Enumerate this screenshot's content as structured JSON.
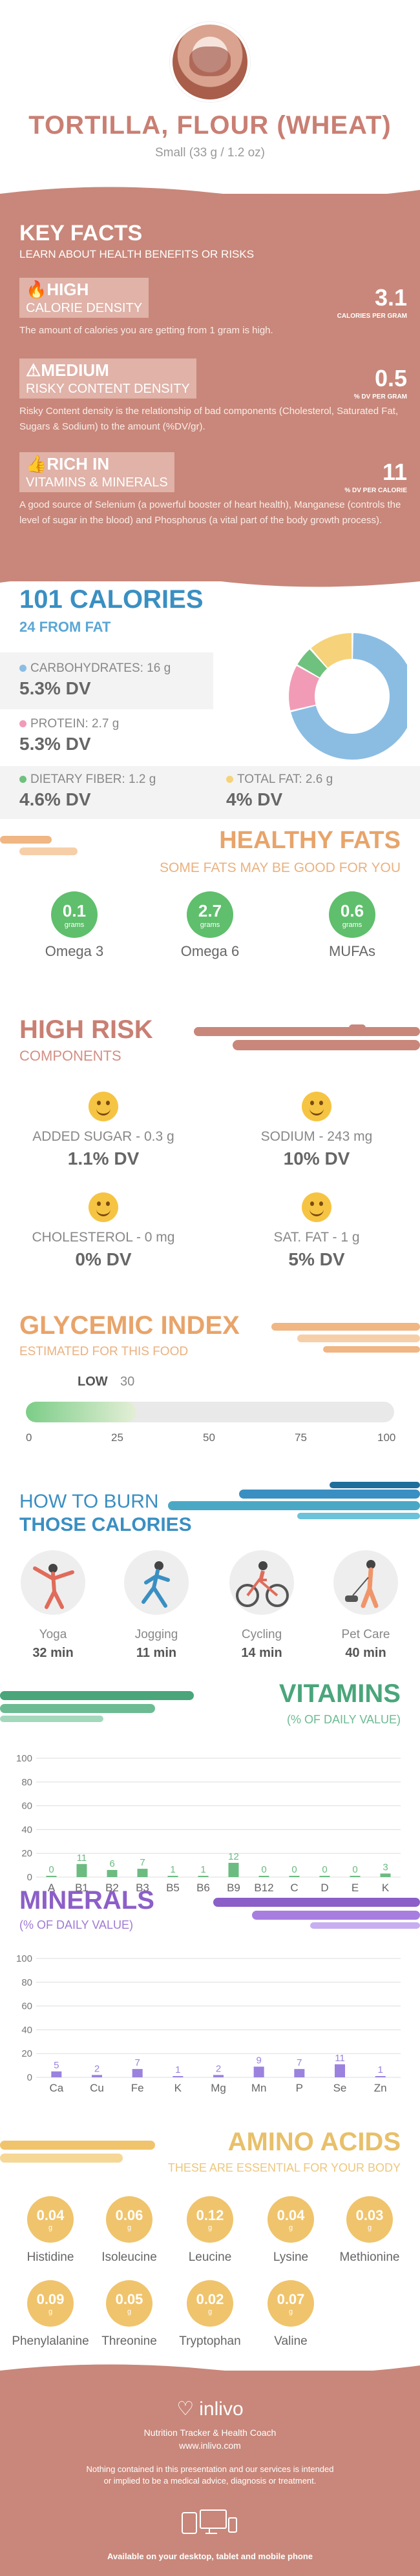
{
  "header": {
    "title": "TORTILLA, FLOUR (WHEAT)",
    "serving": "Small (33 g / 1.2 oz)"
  },
  "key_facts": {
    "title": "KEY FACTS",
    "subtitle": "LEARN ABOUT HEALTH BENEFITS OR RISKS",
    "items": [
      {
        "level": "HIGH",
        "label": "CALORIE DENSITY",
        "value": "3.1",
        "unit": "CALORIES PER GRAM",
        "icon": "flame-icon",
        "desc": "The amount of calories you are getting from 1 gram is high."
      },
      {
        "level": "MEDIUM",
        "label": "RISKY CONTENT DENSITY",
        "value": "0.5",
        "unit": "% DV PER GRAM",
        "icon": "warning-icon",
        "desc": "Risky Content density is the relationship of bad components (Cholesterol, Saturated Fat, Sugars & Sodium) to the amount (%DV/gr)."
      },
      {
        "level": "RICH",
        "label_prefix": "IN",
        "label": "VITAMINS & MINERALS",
        "value": "11",
        "unit": "% DV PER CALORIE",
        "icon": "thumbs-up-icon",
        "desc": "A good source of Selenium (a powerful booster of heart health), Manganese (controls the level of sugar in the blood) and Phosphorus (a vital part of the body growth process)."
      }
    ]
  },
  "calories": {
    "title": "101 CALORIES",
    "subtitle": "24 FROM FAT",
    "nutrients": [
      {
        "label": "CARBOHYDRATES: 16 g",
        "dv": "5.3% DV",
        "color": "#8bbde3"
      },
      {
        "label": "PROTEIN: 2.7 g",
        "dv": "5.3% DV",
        "color": "#f29bb7"
      },
      {
        "label": "DIETARY FIBER: 1.2 g",
        "dv": "4.6% DV",
        "color": "#6fc17e"
      },
      {
        "label": "TOTAL FAT: 2.6 g",
        "dv": "4% DV",
        "color": "#f6d27a"
      }
    ]
  },
  "chart_data": [
    {
      "type": "pie",
      "categories": [
        "Carbohydrates",
        "Protein",
        "Dietary Fiber",
        "Total Fat"
      ],
      "values": [
        16,
        2.7,
        1.2,
        2.6
      ],
      "colors": [
        "#8bbde3",
        "#f29bb7",
        "#6fc17e",
        "#f6d27a"
      ]
    },
    {
      "type": "bar",
      "categories": [
        "A",
        "B1",
        "B2",
        "B3",
        "B5",
        "B6",
        "B9",
        "B12",
        "C",
        "D",
        "E",
        "K"
      ],
      "values": [
        0,
        11,
        6,
        7,
        1,
        1,
        12,
        0,
        0,
        0,
        0,
        3
      ],
      "ylim": [
        0,
        100
      ],
      "yticks": [
        0,
        20,
        40,
        60,
        80,
        100
      ],
      "color": "#6cbb81"
    },
    {
      "type": "bar",
      "categories": [
        "Ca",
        "Cu",
        "Fe",
        "K",
        "Mg",
        "Mn",
        "P",
        "Se",
        "Zn"
      ],
      "values": [
        5,
        2,
        7,
        1,
        2,
        9,
        7,
        11,
        1
      ],
      "ylim": [
        0,
        100
      ],
      "yticks": [
        0,
        20,
        40,
        60,
        80,
        100
      ],
      "color": "#9b82de"
    }
  ],
  "healthy_fats": {
    "title": "HEALTHY FATS",
    "subtitle": "SOME FATS MAY BE GOOD FOR YOU",
    "unit": "grams",
    "items": [
      {
        "name": "Omega 3",
        "value": "0.1"
      },
      {
        "name": "Omega 6",
        "value": "2.7"
      },
      {
        "name": "MUFAs",
        "value": "0.6"
      }
    ]
  },
  "high_risk": {
    "title": "HIGH RISK",
    "subtitle": "COMPONENTS",
    "items": [
      {
        "label": "ADDED SUGAR - 0.3 g",
        "dv": "1.1% DV"
      },
      {
        "label": "SODIUM - 243 mg",
        "dv": "10% DV"
      },
      {
        "label": "CHOLESTEROL - 0 mg",
        "dv": "0% DV"
      },
      {
        "label": "SAT. FAT - 1 g",
        "dv": "5% DV"
      }
    ]
  },
  "glycemic": {
    "title": "GLYCEMIC INDEX",
    "subtitle": "ESTIMATED FOR THIS FOOD",
    "level": "LOW",
    "value": "30",
    "fraction": 0.3,
    "ticks": [
      "0",
      "25",
      "50",
      "75",
      "100"
    ]
  },
  "burn": {
    "title1": "HOW TO BURN",
    "title2": "THOSE CALORIES",
    "items": [
      {
        "name": "Yoga",
        "minutes": "32 min",
        "icon": "yoga-icon"
      },
      {
        "name": "Jogging",
        "minutes": "11 min",
        "icon": "jogging-icon"
      },
      {
        "name": "Cycling",
        "minutes": "14 min",
        "icon": "cycling-icon"
      },
      {
        "name": "Pet Care",
        "minutes": "40 min",
        "icon": "pet-care-icon"
      }
    ]
  },
  "vitamins": {
    "title": "VITAMINS",
    "subtitle": "(% OF DAILY VALUE)"
  },
  "minerals": {
    "title": "MINERALS",
    "subtitle": "(% OF DAILY VALUE)"
  },
  "amino": {
    "title": "AMINO ACIDS",
    "subtitle": "THESE ARE ESSENTIAL FOR YOUR BODY",
    "unit": "g",
    "items": [
      {
        "name": "Histidine",
        "value": "0.04"
      },
      {
        "name": "Isoleucine",
        "value": "0.06"
      },
      {
        "name": "Leucine",
        "value": "0.12"
      },
      {
        "name": "Lysine",
        "value": "0.04"
      },
      {
        "name": "Methionine",
        "value": "0.03"
      },
      {
        "name": "Phenylalanine",
        "value": "0.09"
      },
      {
        "name": "Threonine",
        "value": "0.05"
      },
      {
        "name": "Tryptophan",
        "value": "0.02"
      },
      {
        "name": "Valine",
        "value": "0.07"
      }
    ]
  },
  "footer": {
    "brand": "inlivo",
    "tagline": "Nutrition Tracker & Health Coach",
    "url": "www.inlivo.com",
    "disclaimer": "Nothing contained in this presentation and our services is intended or implied to be a medical advice, diagnosis or treatment.",
    "available": "Available on your desktop, tablet and mobile phone"
  }
}
